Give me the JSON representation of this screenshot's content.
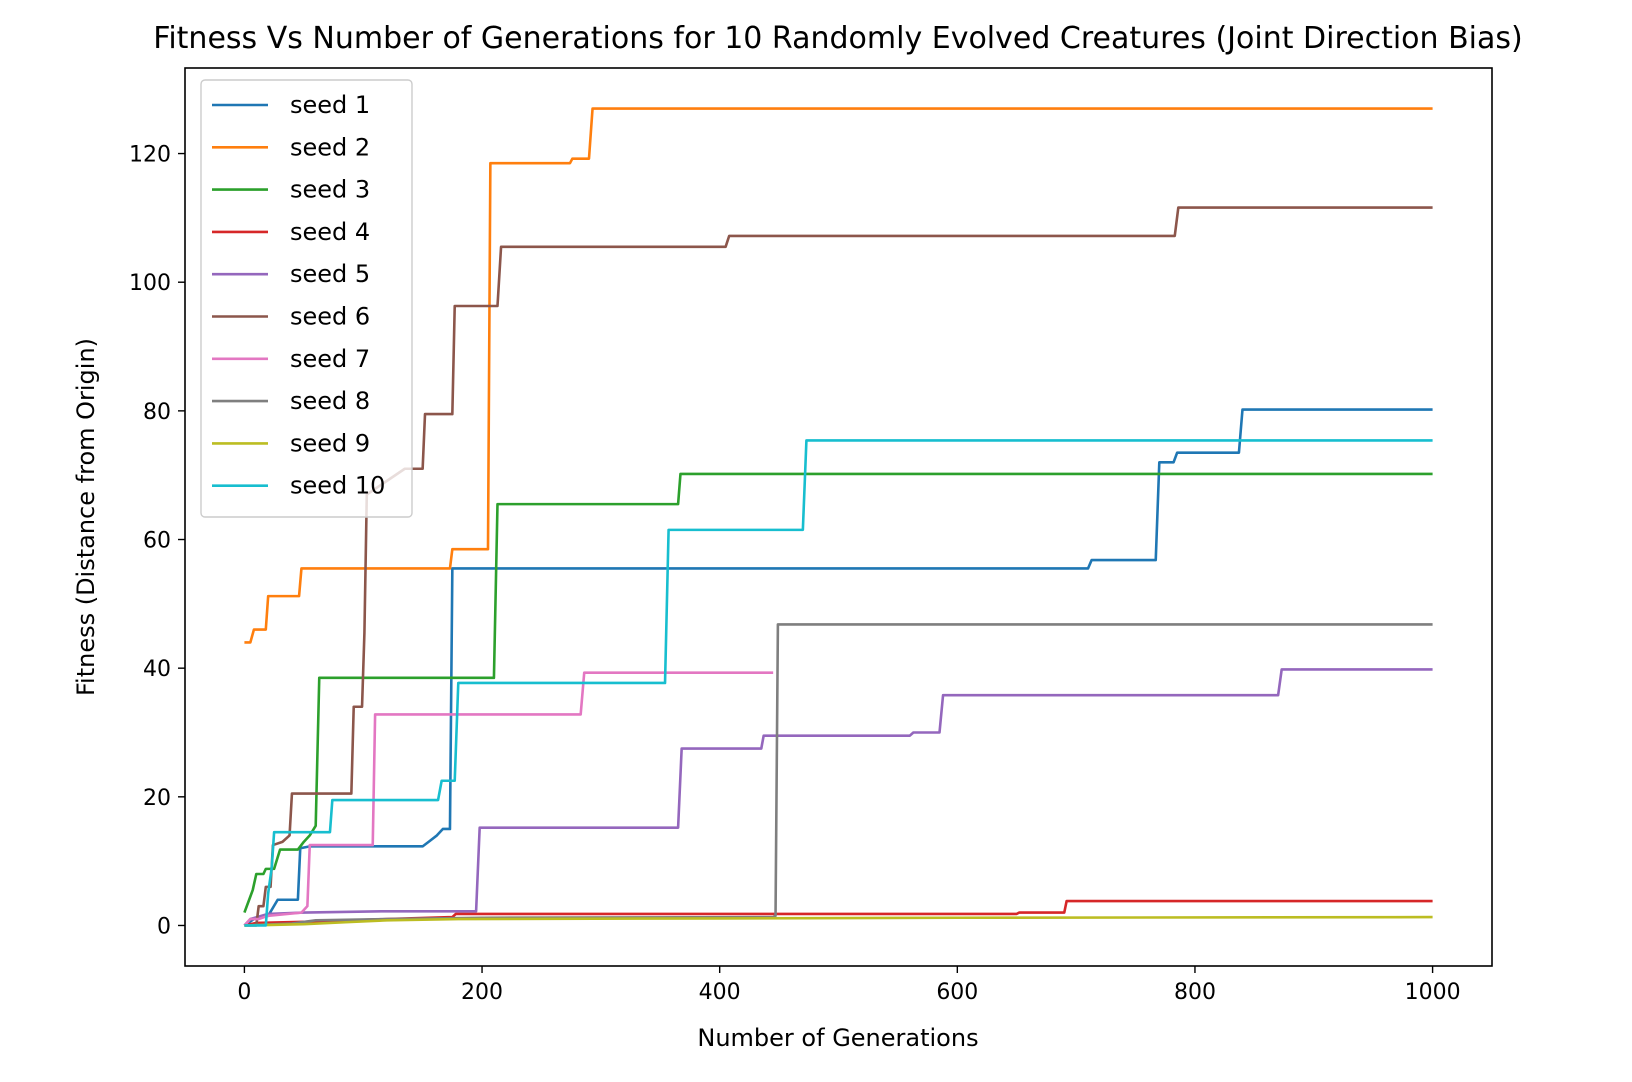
{
  "chart_data": {
    "type": "line",
    "title": "Fitness Vs Number of Generations for 10 Randomly Evolved Creatures (Joint Direction Bias)",
    "xlabel": "Number of Generations",
    "ylabel": "Fitness (Distance from Origin)",
    "xlim": [
      -50,
      1050
    ],
    "ylim": [
      -6.3,
      133.3
    ],
    "xticks": [
      0,
      200,
      400,
      600,
      800,
      1000
    ],
    "yticks": [
      0,
      20,
      40,
      60,
      80,
      100,
      120
    ],
    "grid": false,
    "legend_position": "upper-left",
    "series": [
      {
        "name": "seed 1",
        "color": "#1f77b4",
        "points": [
          [
            0,
            0
          ],
          [
            8,
            1
          ],
          [
            20,
            1.5
          ],
          [
            28,
            4
          ],
          [
            45,
            4
          ],
          [
            47,
            12
          ],
          [
            55,
            12.3
          ],
          [
            150,
            12.3
          ],
          [
            155,
            13
          ],
          [
            162,
            14
          ],
          [
            167,
            15
          ],
          [
            173,
            15
          ],
          [
            175,
            55.5
          ],
          [
            710,
            55.5
          ],
          [
            713,
            56.8
          ],
          [
            767,
            56.8
          ],
          [
            770,
            72
          ],
          [
            782,
            72
          ],
          [
            785,
            73.5
          ],
          [
            837,
            73.5
          ],
          [
            840,
            80.2
          ],
          [
            1000,
            80.2
          ]
        ]
      },
      {
        "name": "seed 2",
        "color": "#ff7f0e",
        "points": [
          [
            0,
            44
          ],
          [
            5,
            44
          ],
          [
            8,
            46
          ],
          [
            18,
            46
          ],
          [
            20,
            51.2
          ],
          [
            46,
            51.2
          ],
          [
            48,
            55.5
          ],
          [
            173,
            55.5
          ],
          [
            175,
            58.5
          ],
          [
            205,
            58.5
          ],
          [
            207,
            118.5
          ],
          [
            274,
            118.5
          ],
          [
            276,
            119.2
          ],
          [
            290,
            119.2
          ],
          [
            293,
            127
          ],
          [
            1000,
            127
          ]
        ]
      },
      {
        "name": "seed 3",
        "color": "#2ca02c",
        "points": [
          [
            0,
            2
          ],
          [
            4,
            4
          ],
          [
            7,
            5.5
          ],
          [
            10,
            8
          ],
          [
            16,
            8
          ],
          [
            18,
            8.8
          ],
          [
            25,
            8.8
          ],
          [
            27,
            10
          ],
          [
            30,
            11.8
          ],
          [
            45,
            11.8
          ],
          [
            50,
            13
          ],
          [
            55,
            14
          ],
          [
            60,
            15.5
          ],
          [
            63,
            38.5
          ],
          [
            210,
            38.5
          ],
          [
            213,
            65.5
          ],
          [
            365,
            65.5
          ],
          [
            367,
            70.2
          ],
          [
            1000,
            70.2
          ]
        ]
      },
      {
        "name": "seed 4",
        "color": "#d62728",
        "points": [
          [
            0,
            0
          ],
          [
            10,
            0.4
          ],
          [
            60,
            0.6
          ],
          [
            120,
            1
          ],
          [
            175,
            1.3
          ],
          [
            178,
            1.8
          ],
          [
            650,
            1.8
          ],
          [
            652,
            2
          ],
          [
            690,
            2
          ],
          [
            692,
            3.8
          ],
          [
            1000,
            3.8
          ]
        ]
      },
      {
        "name": "seed 5",
        "color": "#9467bd",
        "points": [
          [
            0,
            0
          ],
          [
            5,
            1
          ],
          [
            20,
            1.8
          ],
          [
            50,
            2
          ],
          [
            115,
            2.2
          ],
          [
            195,
            2.2
          ],
          [
            198,
            15.2
          ],
          [
            365,
            15.2
          ],
          [
            368,
            27.5
          ],
          [
            435,
            27.5
          ],
          [
            437,
            29.5
          ],
          [
            560,
            29.5
          ],
          [
            563,
            30
          ],
          [
            585,
            30
          ],
          [
            588,
            35.8
          ],
          [
            870,
            35.8
          ],
          [
            873,
            39.8
          ],
          [
            1000,
            39.8
          ]
        ]
      },
      {
        "name": "seed 6",
        "color": "#8c564b",
        "points": [
          [
            0,
            0
          ],
          [
            10,
            0
          ],
          [
            12,
            3
          ],
          [
            16,
            3
          ],
          [
            18,
            6
          ],
          [
            22,
            6
          ],
          [
            24,
            12.5
          ],
          [
            32,
            13
          ],
          [
            38,
            14
          ],
          [
            40,
            20.5
          ],
          [
            90,
            20.5
          ],
          [
            92,
            34
          ],
          [
            99,
            34
          ],
          [
            101,
            45.5
          ],
          [
            103,
            67
          ],
          [
            135,
            71
          ],
          [
            150,
            71
          ],
          [
            152,
            79.5
          ],
          [
            175,
            79.5
          ],
          [
            177,
            96.3
          ],
          [
            213,
            96.3
          ],
          [
            216,
            105.5
          ],
          [
            405,
            105.5
          ],
          [
            408,
            107.2
          ],
          [
            783,
            107.2
          ],
          [
            786,
            111.6
          ],
          [
            1000,
            111.6
          ]
        ]
      },
      {
        "name": "seed 7",
        "color": "#e377c2",
        "points": [
          [
            0,
            0
          ],
          [
            5,
            1
          ],
          [
            12,
            1
          ],
          [
            20,
            1.5
          ],
          [
            48,
            2
          ],
          [
            53,
            3
          ],
          [
            55,
            12.5
          ],
          [
            108,
            12.5
          ],
          [
            110,
            32.8
          ],
          [
            283,
            32.8
          ],
          [
            286,
            39.3
          ],
          [
            445,
            39.3
          ]
        ]
      },
      {
        "name": "seed 8",
        "color": "#7f7f7f",
        "points": [
          [
            0,
            0
          ],
          [
            40,
            0.3
          ],
          [
            60,
            0.8
          ],
          [
            120,
            1
          ],
          [
            200,
            1.2
          ],
          [
            445,
            1.3
          ],
          [
            447,
            1.5
          ],
          [
            449,
            46.8
          ],
          [
            1000,
            46.8
          ]
        ]
      },
      {
        "name": "seed 9",
        "color": "#bcbd22",
        "points": [
          [
            0,
            0
          ],
          [
            50,
            0.2
          ],
          [
            85,
            0.5
          ],
          [
            120,
            0.8
          ],
          [
            180,
            1
          ],
          [
            400,
            1.1
          ],
          [
            600,
            1.2
          ],
          [
            1000,
            1.3
          ]
        ]
      },
      {
        "name": "seed 10",
        "color": "#17becf",
        "points": [
          [
            0,
            0
          ],
          [
            18,
            0
          ],
          [
            20,
            5
          ],
          [
            23,
            9
          ],
          [
            25,
            14.5
          ],
          [
            72,
            14.5
          ],
          [
            74,
            19.5
          ],
          [
            163,
            19.5
          ],
          [
            166,
            22.5
          ],
          [
            177,
            22.5
          ],
          [
            180,
            37.7
          ],
          [
            354,
            37.7
          ],
          [
            357,
            61.5
          ],
          [
            470,
            61.5
          ],
          [
            473,
            75.4
          ],
          [
            1000,
            75.4
          ]
        ]
      }
    ]
  }
}
